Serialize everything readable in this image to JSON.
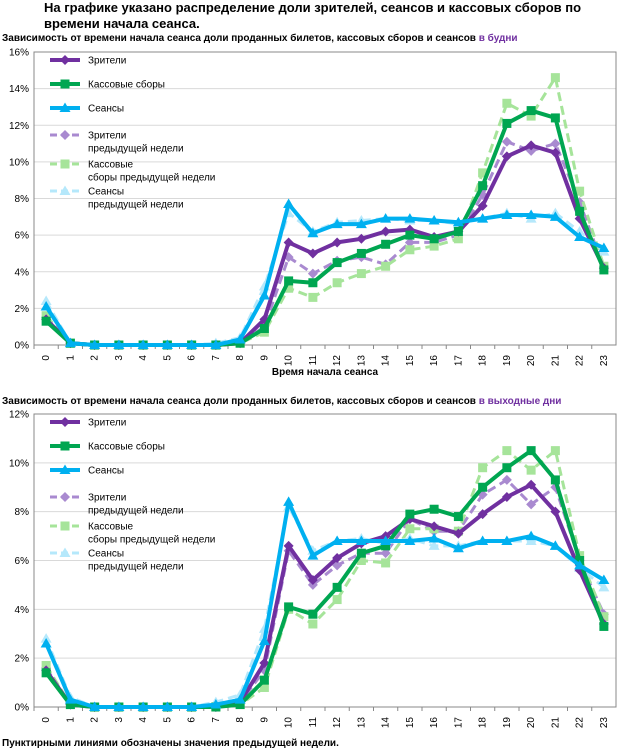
{
  "heading": "На графике указано распределение доли зрителей, сеансов и кассовых сборов по времени начала сеанса.",
  "footnote": "Пунктирными линиями обозначены значения предыдущей недели.",
  "colors": {
    "viewers": "#7030a0",
    "revenue": "#00a651",
    "sessions": "#00b0f0",
    "viewers_prev": "#a98ad0",
    "revenue_prev": "#a6e49a",
    "sessions_prev": "#b5e8fb"
  },
  "chart_data": [
    {
      "type": "line",
      "title_prefix": "Зависимость от времени начала сеанса доли проданных билетов, кассовых сборов и сеансов",
      "title_highlight": "в будни",
      "xlabel": "Время начала сеанса",
      "x": [
        "0",
        "1",
        "2",
        "3",
        "4",
        "5",
        "6",
        "7",
        "8",
        "9",
        "10",
        "11",
        "12",
        "13",
        "14",
        "15",
        "16",
        "17",
        "18",
        "19",
        "20",
        "21",
        "22",
        "23"
      ],
      "ylim": [
        0,
        16
      ],
      "yticks": [
        "0%",
        "2%",
        "4%",
        "6%",
        "8%",
        "10%",
        "12%",
        "14%",
        "16%"
      ],
      "series": [
        {
          "name": "Зрители",
          "key": "viewers",
          "dashed": false,
          "marker": "diamond",
          "values": [
            1.4,
            0.1,
            0.0,
            0.0,
            0.0,
            0.0,
            0.0,
            0.0,
            0.1,
            1.4,
            5.6,
            5.0,
            5.6,
            5.8,
            6.2,
            6.3,
            5.9,
            6.2,
            7.6,
            10.3,
            10.9,
            10.5,
            6.9,
            4.2
          ]
        },
        {
          "name": "Кассовые сборы",
          "key": "revenue",
          "dashed": false,
          "marker": "square",
          "values": [
            1.3,
            0.1,
            0.0,
            0.0,
            0.0,
            0.0,
            0.0,
            0.0,
            0.1,
            0.9,
            3.5,
            3.4,
            4.5,
            5.0,
            5.5,
            6.0,
            5.8,
            6.2,
            8.7,
            12.1,
            12.8,
            12.4,
            7.3,
            4.1
          ]
        },
        {
          "name": "Сеансы",
          "key": "sessions",
          "dashed": false,
          "marker": "triangle",
          "values": [
            2.1,
            0.1,
            0.0,
            0.0,
            0.0,
            0.0,
            0.0,
            0.0,
            0.3,
            2.7,
            7.7,
            6.1,
            6.6,
            6.6,
            6.9,
            6.9,
            6.8,
            6.7,
            6.9,
            7.1,
            7.1,
            7.0,
            5.9,
            5.3
          ]
        },
        {
          "name": "Зрители предыдущей недели",
          "key": "viewers_prev",
          "dashed": true,
          "marker": "diamond",
          "values": [
            1.5,
            0.1,
            0.0,
            0.0,
            0.0,
            0.0,
            0.0,
            0.0,
            0.1,
            1.0,
            4.8,
            3.9,
            4.6,
            4.8,
            4.4,
            5.6,
            5.6,
            6.0,
            8.2,
            11.1,
            10.6,
            11.0,
            7.8,
            4.2
          ]
        },
        {
          "name": "Кассовые сборы предыдущей недели",
          "key": "revenue_prev",
          "dashed": true,
          "marker": "square",
          "values": [
            1.6,
            0.1,
            0.0,
            0.0,
            0.0,
            0.0,
            0.0,
            0.0,
            0.1,
            0.7,
            3.1,
            2.6,
            3.4,
            3.9,
            4.3,
            5.2,
            5.4,
            5.8,
            9.4,
            13.2,
            12.5,
            14.6,
            8.4,
            4.3
          ]
        },
        {
          "name": "Сеансы предыдущей недели",
          "key": "sessions_prev",
          "dashed": true,
          "marker": "triangle",
          "values": [
            2.4,
            0.1,
            0.0,
            0.0,
            0.0,
            0.0,
            0.0,
            0.1,
            0.4,
            3.2,
            7.2,
            6.2,
            6.7,
            6.8,
            6.9,
            6.8,
            6.8,
            6.6,
            6.9,
            7.2,
            6.9,
            7.2,
            6.2,
            5.1
          ]
        }
      ]
    },
    {
      "type": "line",
      "title_prefix": "Зависимость от времени начала сеанса доли проданных билетов, кассовых сборов и сеансов",
      "title_highlight": "в выходные дни",
      "xlabel": "",
      "x": [
        "0",
        "1",
        "2",
        "3",
        "4",
        "5",
        "6",
        "7",
        "8",
        "9",
        "10",
        "11",
        "12",
        "13",
        "14",
        "15",
        "16",
        "17",
        "18",
        "19",
        "20",
        "21",
        "22",
        "23"
      ],
      "ylim": [
        0,
        12
      ],
      "yticks": [
        "0%",
        "2%",
        "4%",
        "6%",
        "8%",
        "10%",
        "12%"
      ],
      "series": [
        {
          "name": "Зрители",
          "key": "viewers",
          "dashed": false,
          "marker": "diamond",
          "values": [
            1.5,
            0.1,
            0.0,
            0.0,
            0.0,
            0.0,
            0.0,
            0.0,
            0.2,
            1.8,
            6.6,
            5.2,
            6.1,
            6.7,
            7.0,
            7.7,
            7.4,
            7.1,
            7.9,
            8.6,
            9.1,
            8.0,
            5.6,
            3.4
          ]
        },
        {
          "name": "Кассовые сборы",
          "key": "revenue",
          "dashed": false,
          "marker": "square",
          "values": [
            1.4,
            0.1,
            0.0,
            0.0,
            0.0,
            0.0,
            0.0,
            0.0,
            0.1,
            1.1,
            4.1,
            3.8,
            4.9,
            6.3,
            6.6,
            7.9,
            8.1,
            7.8,
            9.0,
            9.8,
            10.5,
            9.3,
            6.0,
            3.3
          ]
        },
        {
          "name": "Сеансы",
          "key": "sessions",
          "dashed": false,
          "marker": "triangle",
          "values": [
            2.6,
            0.3,
            0.0,
            0.0,
            0.0,
            0.0,
            0.0,
            0.1,
            0.3,
            2.7,
            8.4,
            6.2,
            6.8,
            6.8,
            6.8,
            6.8,
            6.9,
            6.5,
            6.8,
            6.8,
            7.0,
            6.6,
            5.8,
            5.2
          ]
        },
        {
          "name": "Зрители предыдущей недели",
          "key": "viewers_prev",
          "dashed": true,
          "marker": "diamond",
          "values": [
            1.6,
            0.1,
            0.0,
            0.0,
            0.0,
            0.0,
            0.0,
            0.0,
            0.2,
            1.5,
            6.4,
            5.0,
            5.8,
            6.3,
            6.3,
            7.7,
            7.2,
            7.2,
            8.7,
            9.3,
            8.3,
            9.0,
            6.0,
            3.8
          ]
        },
        {
          "name": "Кассовые сборы предыдущей недели",
          "key": "revenue_prev",
          "dashed": true,
          "marker": "square",
          "values": [
            1.7,
            0.1,
            0.0,
            0.0,
            0.0,
            0.0,
            0.0,
            0.0,
            0.1,
            0.8,
            4.0,
            3.4,
            4.4,
            6.0,
            5.9,
            7.3,
            7.3,
            7.2,
            9.8,
            10.5,
            9.7,
            10.5,
            6.2,
            3.7
          ]
        },
        {
          "name": "Сеансы предыдущей недели",
          "key": "sessions_prev",
          "dashed": true,
          "marker": "triangle",
          "values": [
            2.8,
            0.4,
            0.0,
            0.0,
            0.0,
            0.0,
            0.0,
            0.2,
            0.5,
            3.2,
            8.2,
            6.4,
            6.8,
            6.9,
            6.7,
            6.9,
            6.6,
            6.6,
            6.8,
            6.8,
            6.8,
            6.6,
            5.7,
            4.9
          ]
        }
      ]
    }
  ]
}
